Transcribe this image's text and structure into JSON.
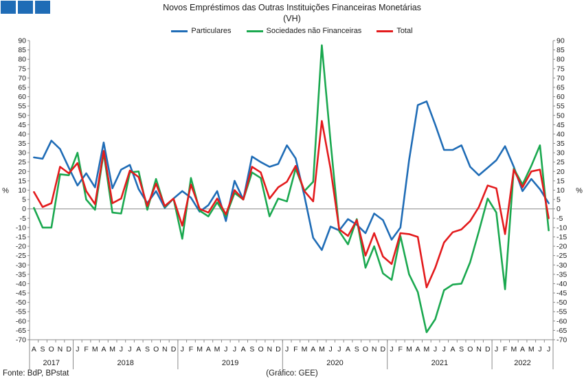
{
  "chart_data": {
    "type": "line",
    "title": "Novos Empréstimos das Outras Instituições Financeiras Monetárias",
    "subtitle": "(VH)",
    "ylabel_left": "%",
    "ylabel_right": "%",
    "ylim": [
      -70,
      90
    ],
    "ytick_step": 5,
    "grid": false,
    "legend_position": "top",
    "source": "Fonte: BdP, BPstat",
    "credit": "(Gráfico: GEE)",
    "month_labels": [
      "A",
      "S",
      "O",
      "N",
      "D",
      "J",
      "F",
      "M",
      "A",
      "M",
      "J",
      "J",
      "A",
      "S",
      "O",
      "N",
      "D",
      "J",
      "F",
      "M",
      "A",
      "M",
      "J",
      "J",
      "A",
      "S",
      "O",
      "N",
      "D",
      "J",
      "F",
      "M",
      "A",
      "M",
      "J",
      "J",
      "A",
      "S",
      "O",
      "N",
      "D",
      "J",
      "F",
      "M",
      "A",
      "M",
      "J",
      "J",
      "A",
      "S",
      "O",
      "N",
      "D",
      "J",
      "F",
      "M",
      "A",
      "M",
      "J",
      "J"
    ],
    "year_groups": [
      {
        "label": "2017",
        "months": 5
      },
      {
        "label": "2018",
        "months": 12
      },
      {
        "label": "2019",
        "months": 12
      },
      {
        "label": "2020",
        "months": 12
      },
      {
        "label": "2021",
        "months": 12
      },
      {
        "label": "2022",
        "months": 7
      }
    ],
    "series": [
      {
        "name": "Particulares",
        "color": "#1f6cb6",
        "values": [
          27.5,
          26.8,
          36.5,
          32,
          22,
          12.5,
          19,
          11.5,
          35.5,
          11,
          21,
          23.5,
          10.5,
          3,
          9.5,
          0.5,
          5.5,
          9.5,
          6,
          -1.5,
          2,
          9.5,
          -6.5,
          15,
          5,
          28,
          25,
          22.5,
          24,
          34,
          27,
          7,
          -15.5,
          -22,
          -9.5,
          -11.5,
          -5.5,
          -8.5,
          -13,
          -2.5,
          -6,
          -16.5,
          -10,
          26,
          55.5,
          57.5,
          45,
          31.5,
          31.5,
          34,
          22.5,
          18,
          22,
          26,
          33.5,
          22.5,
          9.5,
          16,
          10.5,
          3
        ]
      },
      {
        "name": "Sociedades não Financeiras",
        "color": "#1aa84f",
        "values": [
          0.5,
          -10,
          -10,
          18.5,
          18,
          30,
          5,
          -0.5,
          30,
          -2,
          -2.5,
          19.5,
          20,
          -0.5,
          16,
          1,
          5.5,
          -16,
          16.5,
          -1,
          -4,
          3.5,
          -4,
          8.5,
          5,
          19.5,
          16.5,
          -4,
          5.5,
          4,
          21.5,
          9.5,
          14.5,
          87.5,
          36,
          -12,
          -19,
          -5.5,
          -31.5,
          -20,
          -34.5,
          -38,
          -14.5,
          -35,
          -44.5,
          -66,
          -59,
          -43.5,
          -40.5,
          -40,
          -28.5,
          -12,
          5.5,
          -2,
          -43,
          21.5,
          13,
          23,
          34,
          -11.5
        ]
      },
      {
        "name": "Total",
        "color": "#e31a1c",
        "values": [
          9,
          1,
          3,
          22.5,
          19,
          24.5,
          9.5,
          2.5,
          31,
          3,
          5.5,
          20.5,
          17,
          1.5,
          13.5,
          1.5,
          5.5,
          -9,
          13,
          0,
          -2,
          5.5,
          -3,
          10,
          5,
          22.5,
          19.5,
          5.5,
          11.5,
          14.5,
          23,
          9.5,
          4,
          47,
          21.5,
          -11,
          -14.5,
          -6,
          -25,
          -13,
          -25.5,
          -29.5,
          -13,
          -13.5,
          -15,
          -42,
          -31.5,
          -18,
          -12.5,
          -11,
          -6.5,
          1,
          12.5,
          11,
          -13.5,
          21,
          11.5,
          20,
          21,
          -5
        ]
      }
    ]
  }
}
